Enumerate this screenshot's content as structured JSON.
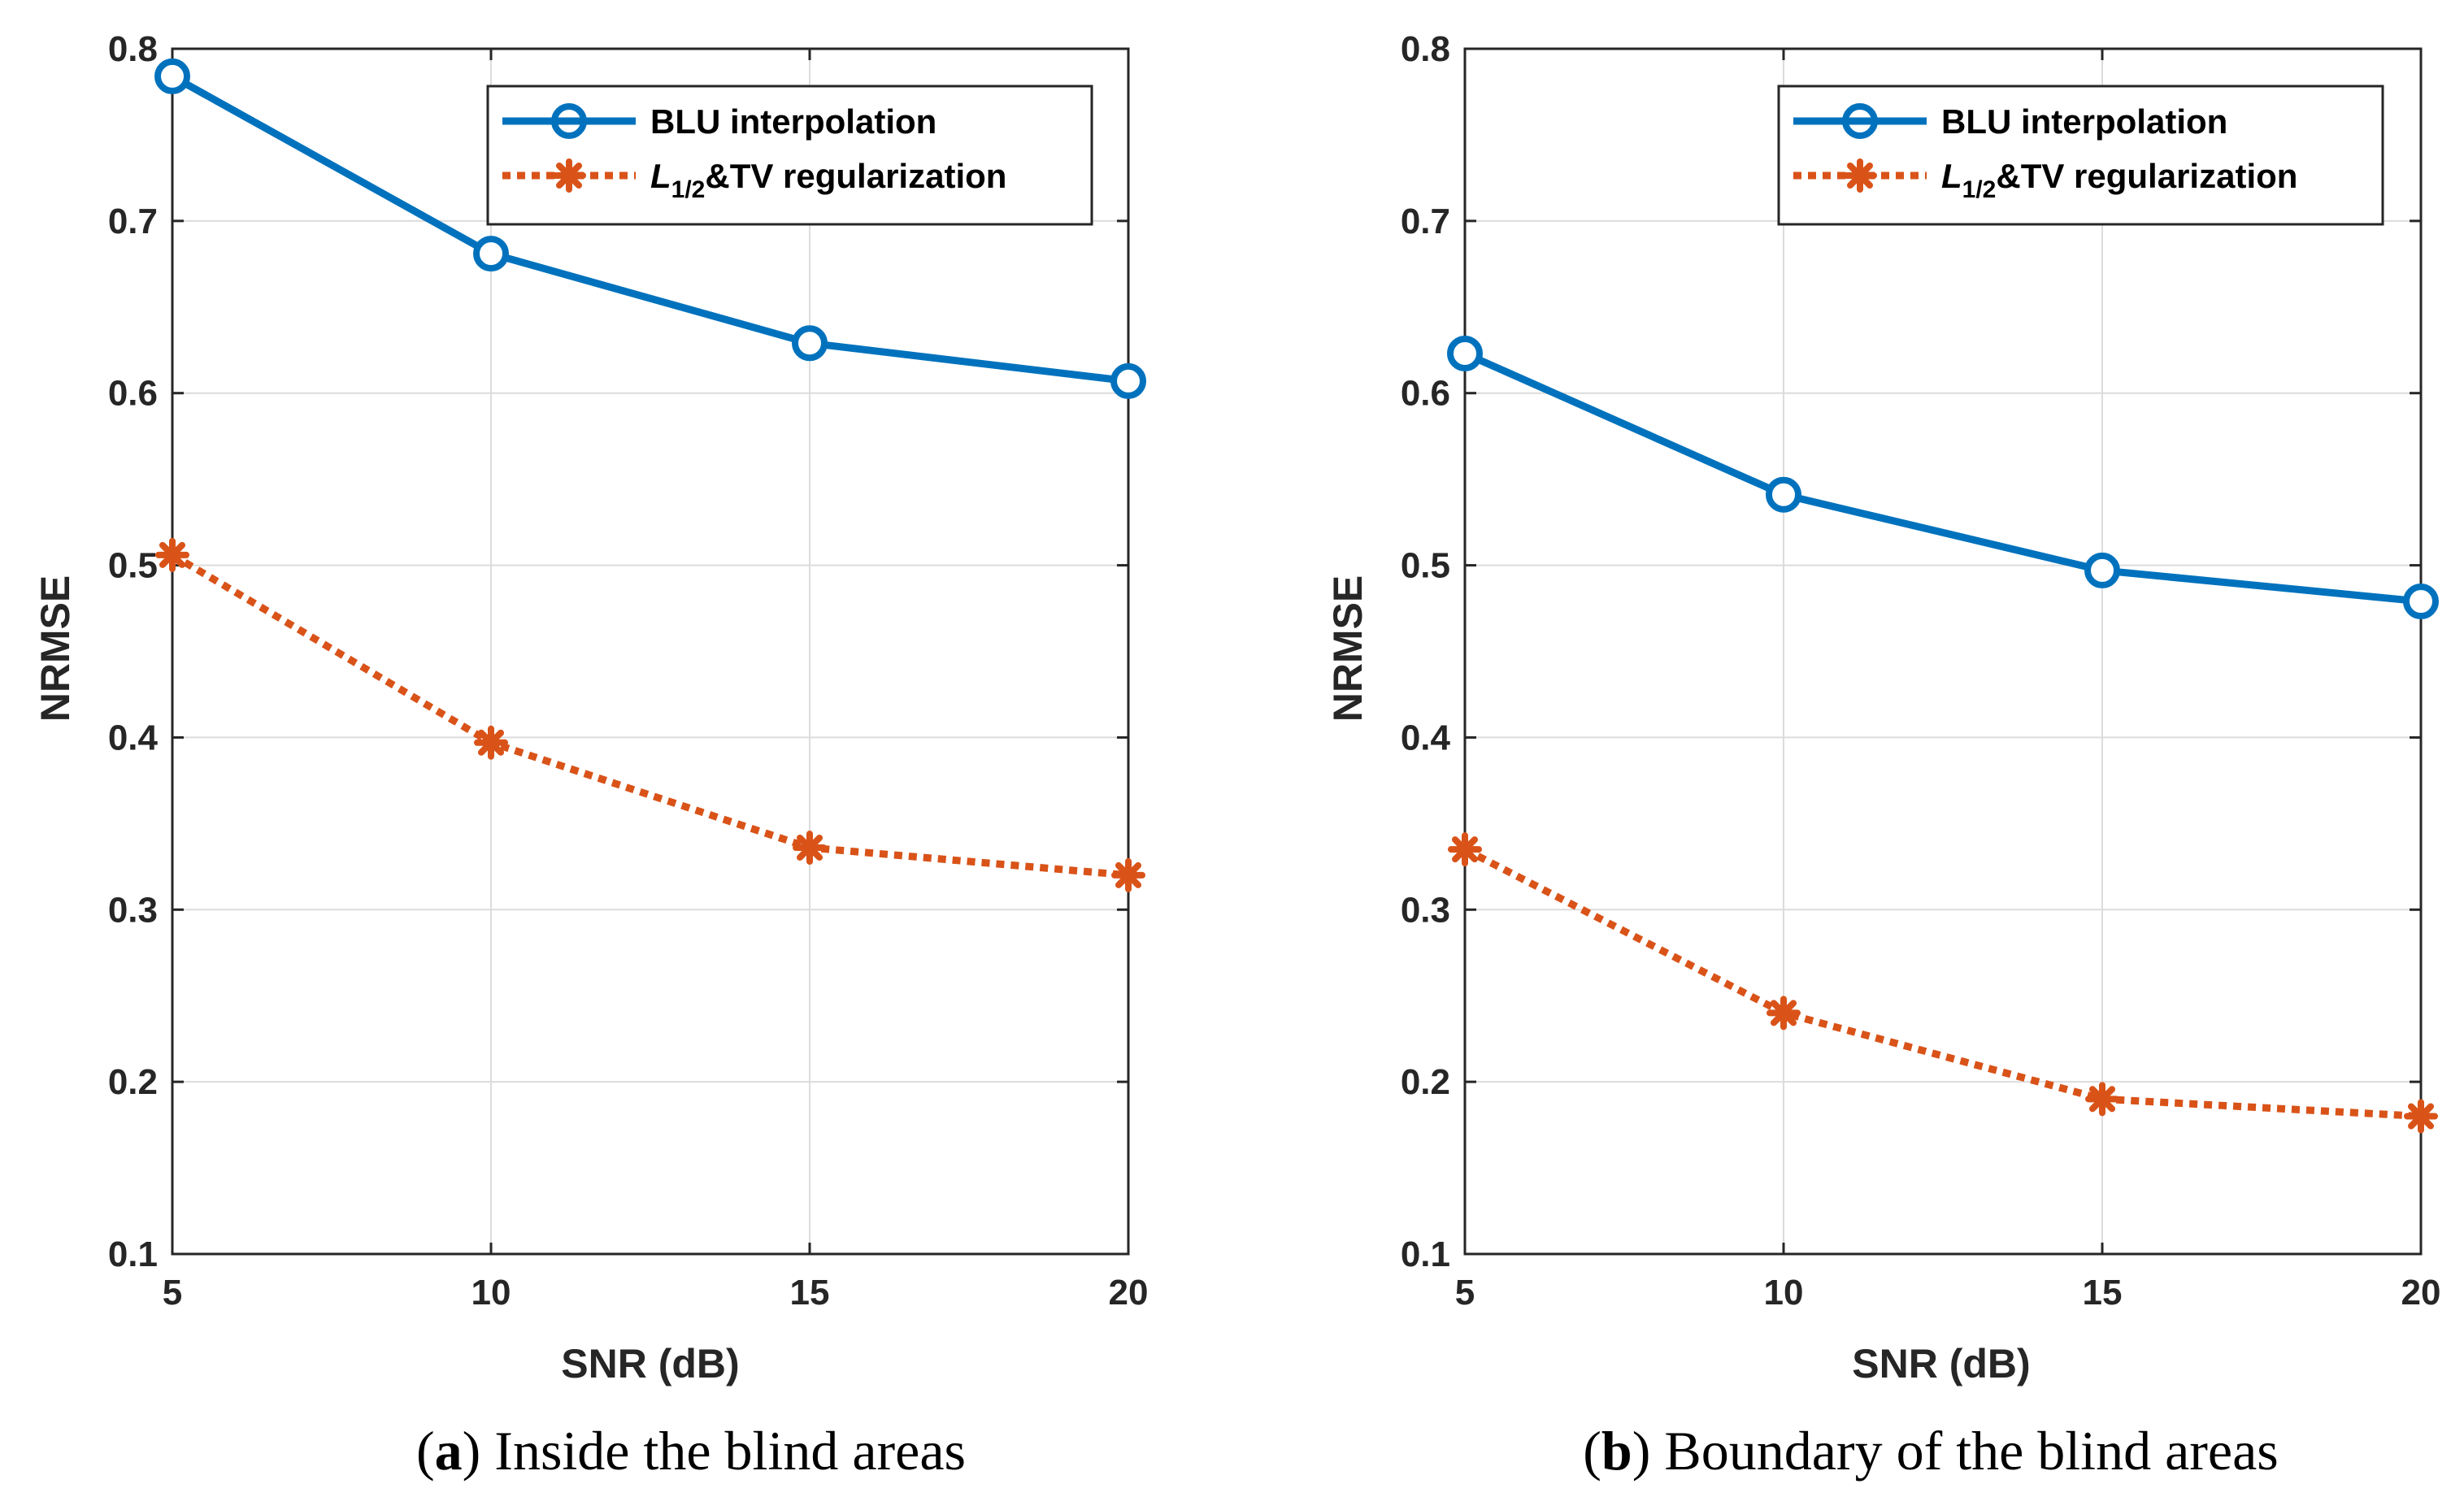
{
  "colors": {
    "blu": "#0072BD",
    "l12": "#D95319",
    "axis": "#262626",
    "grid": "#dcdcdc"
  },
  "chart_data": [
    {
      "id": "a",
      "type": "line",
      "x": [
        5,
        10,
        15,
        20
      ],
      "xticks": [
        "5",
        "10",
        "15",
        "20"
      ],
      "yticks": [
        "0.1",
        "0.2",
        "0.3",
        "0.4",
        "0.5",
        "0.6",
        "0.7",
        "0.8"
      ],
      "xlim": [
        5,
        20
      ],
      "ylim": [
        0.1,
        0.8
      ],
      "xlabel": "SNR (dB)",
      "ylabel": "NRMSE",
      "grid": true,
      "legend_position": "top-right",
      "series": [
        {
          "name": "BLU interpolation",
          "style": "solid-circle",
          "values": [
            0.784,
            0.681,
            0.629,
            0.607
          ]
        },
        {
          "name": "L1/2&TV regularization",
          "style": "dotted-asterisk",
          "values": [
            0.506,
            0.397,
            0.336,
            0.32
          ]
        }
      ],
      "caption_letter": "a",
      "caption_text": " Inside the blind areas"
    },
    {
      "id": "b",
      "type": "line",
      "x": [
        5,
        10,
        15,
        20
      ],
      "xticks": [
        "5",
        "10",
        "15",
        "20"
      ],
      "yticks": [
        "0.1",
        "0.2",
        "0.3",
        "0.4",
        "0.5",
        "0.6",
        "0.7",
        "0.8"
      ],
      "xlim": [
        5,
        20
      ],
      "ylim": [
        0.1,
        0.8
      ],
      "xlabel": "SNR (dB)",
      "ylabel": "NRMSE",
      "grid": true,
      "legend_position": "top-right",
      "series": [
        {
          "name": "BLU interpolation",
          "style": "solid-circle",
          "values": [
            0.623,
            0.541,
            0.497,
            0.479
          ]
        },
        {
          "name": "L1/2&TV regularization",
          "style": "dotted-asterisk",
          "values": [
            0.335,
            0.24,
            0.19,
            0.18
          ]
        }
      ],
      "caption_letter": "b",
      "caption_text": " Boundary of the blind areas"
    }
  ],
  "legend": {
    "blu_label": "BLU interpolation",
    "l12_main": "L",
    "l12_sub": "1/2",
    "l12_rest": "&TV regularization"
  }
}
